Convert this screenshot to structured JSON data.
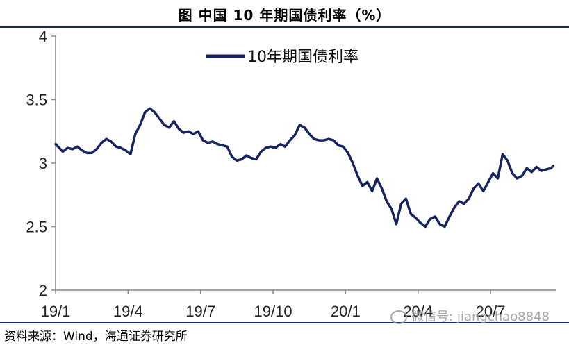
{
  "figure": {
    "title": "图    中国 10 年期国债利率（%）",
    "source": "资料来源：Wind，海通证券研究所",
    "watermark": "微信号: jiangchao8848",
    "watermark_icon": "wechat-icon"
  },
  "chart_data": {
    "type": "line",
    "title": "",
    "xlabel": "",
    "ylabel": "",
    "ylim": [
      2,
      4
    ],
    "yticks": [
      "2",
      "2.5",
      "3",
      "3.5",
      "4"
    ],
    "xticks": [
      "19/1",
      "19/4",
      "19/7",
      "19/10",
      "20/1",
      "20/4",
      "20/7"
    ],
    "xlim": [
      0,
      20.7
    ],
    "grid": false,
    "legend": "top-left",
    "colors": {
      "line": "#15245e",
      "axis": "#888888"
    },
    "series": [
      {
        "name": "10年期国债利率",
        "x": [
          0,
          0.1,
          0.3,
          0.5,
          0.7,
          0.9,
          1.1,
          1.3,
          1.5,
          1.7,
          1.9,
          2.1,
          2.3,
          2.5,
          2.7,
          2.9,
          3.1,
          3.3,
          3.5,
          3.7,
          3.9,
          4.1,
          4.3,
          4.5,
          4.7,
          4.9,
          5.1,
          5.3,
          5.5,
          5.7,
          5.9,
          6.1,
          6.3,
          6.5,
          6.7,
          6.9,
          7.1,
          7.3,
          7.5,
          7.7,
          7.9,
          8.1,
          8.3,
          8.5,
          8.7,
          8.9,
          9.1,
          9.3,
          9.5,
          9.7,
          9.9,
          10.1,
          10.3,
          10.5,
          10.7,
          10.9,
          11.1,
          11.3,
          11.5,
          11.7,
          11.9,
          12.1,
          12.3,
          12.5,
          12.7,
          12.9,
          13.1,
          13.3,
          13.5,
          13.7,
          13.9,
          14.1,
          14.3,
          14.5,
          14.7,
          14.9,
          15.1,
          15.3,
          15.5,
          15.7,
          15.9,
          16.1,
          16.3,
          16.5,
          16.7,
          16.9,
          17.1,
          17.3,
          17.5,
          17.7,
          17.9,
          18.1,
          18.3,
          18.5,
          18.7,
          18.9,
          19.1,
          19.3,
          19.5,
          19.7,
          19.9,
          20.1,
          20.3,
          20.5,
          20.6
        ],
        "values": [
          3.15,
          3.13,
          3.09,
          3.12,
          3.11,
          3.13,
          3.1,
          3.08,
          3.08,
          3.11,
          3.16,
          3.19,
          3.17,
          3.13,
          3.12,
          3.1,
          3.07,
          3.23,
          3.3,
          3.4,
          3.43,
          3.4,
          3.35,
          3.3,
          3.28,
          3.33,
          3.27,
          3.24,
          3.25,
          3.23,
          3.25,
          3.18,
          3.16,
          3.17,
          3.15,
          3.14,
          3.13,
          3.05,
          3.02,
          3.03,
          3.06,
          3.04,
          3.03,
          3.09,
          3.12,
          3.13,
          3.12,
          3.15,
          3.13,
          3.18,
          3.22,
          3.3,
          3.28,
          3.23,
          3.19,
          3.18,
          3.18,
          3.19,
          3.18,
          3.14,
          3.13,
          3.08,
          3.0,
          2.9,
          2.82,
          2.85,
          2.78,
          2.88,
          2.8,
          2.7,
          2.64,
          2.52,
          2.68,
          2.72,
          2.6,
          2.57,
          2.53,
          2.5,
          2.56,
          2.58,
          2.52,
          2.5,
          2.58,
          2.65,
          2.7,
          2.68,
          2.72,
          2.8,
          2.84,
          2.78,
          2.85,
          2.92,
          2.88,
          3.07,
          3.02,
          2.92,
          2.88,
          2.9,
          2.96,
          2.93,
          2.97,
          2.94,
          2.95,
          2.96,
          2.98
        ]
      }
    ]
  }
}
